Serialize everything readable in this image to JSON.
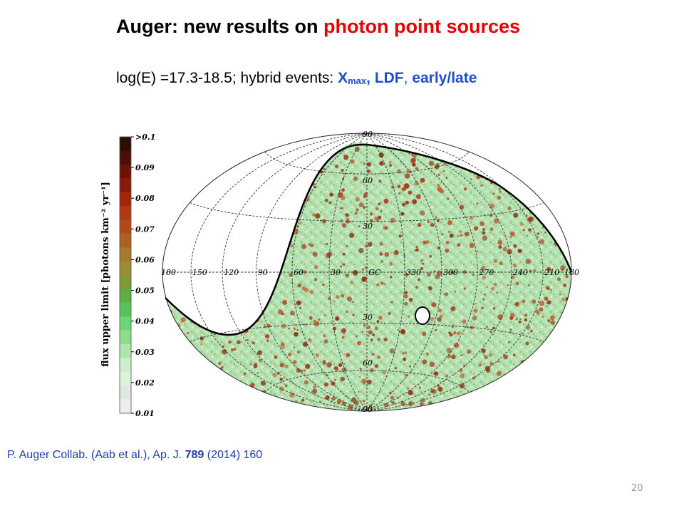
{
  "slide": {
    "title_part1": "Auger:  new results on ",
    "title_part2": "photon point sources",
    "subtitle_part1": "log(E) =17.3-18.5;   hybrid events:  ",
    "subtitle_x": "X",
    "subtitle_sub": "max",
    "subtitle_comma1": ", ",
    "subtitle_ldf": "LDF",
    "subtitle_comma2": ", ",
    "subtitle_early": "early/late",
    "reference_part1": "P. Auger Collab. (Aab et al.), Ap. J. ",
    "reference_volume": "789",
    "reference_part2": " (2014) 160",
    "page_number": "20"
  },
  "colorbar": {
    "label": "flux upper limit [photons km⁻² yr⁻¹]",
    "ticks": [
      ">0.1",
      "0.09",
      "0.08",
      "0.07",
      "0.06",
      "0.05",
      "0.04",
      "0.03",
      "0.02",
      "0.01"
    ],
    "colors": [
      "#2b0d04",
      "#4a0f06",
      "#6e1208",
      "#8c1a0a",
      "#a8230c",
      "#b63512",
      "#b04a1a",
      "#a96223",
      "#a67a2c",
      "#9a8c30",
      "#7d9a35",
      "#5fae45",
      "#56c45a",
      "#6ed474",
      "#8ddc90",
      "#aee6af",
      "#cbeecb",
      "#dcf2dc",
      "#e3e7e3",
      "#eceeec"
    ]
  },
  "map": {
    "latitude_labels": [
      "90",
      "60",
      "30",
      "30",
      "60",
      "90"
    ],
    "longitude_labels": [
      "180",
      "150",
      "120",
      "90",
      "60",
      "30",
      "GC",
      "330",
      "300",
      "270",
      "240",
      "210",
      "180"
    ]
  }
}
